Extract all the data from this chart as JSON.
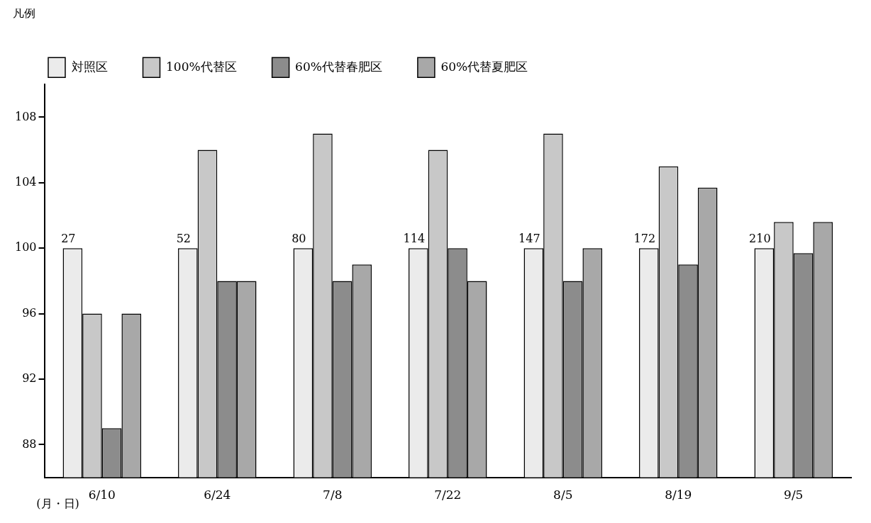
{
  "chart_data": {
    "type": "bar",
    "xlabel": "(月・日)",
    "legend_title": "凡例",
    "categories": [
      "6/10",
      "6/24",
      "7/8",
      "7/22",
      "8/5",
      "8/19",
      "9/5"
    ],
    "series": [
      {
        "name": "対照区",
        "color": "#ebebeb",
        "values": [
          100,
          100,
          100,
          100,
          100,
          100,
          100
        ]
      },
      {
        "name": "100%代替区",
        "color": "#c8c8c8",
        "values": [
          96,
          106,
          107,
          106,
          107,
          105,
          101.6
        ]
      },
      {
        "name": "60%代替春肥区",
        "color": "#8c8c8c",
        "values": [
          89,
          98,
          98,
          100,
          98,
          99,
          99.7
        ]
      },
      {
        "name": "60%代替夏肥区",
        "color": "#a8a8a8",
        "values": [
          96,
          98,
          99,
          98,
          100,
          103.7,
          101.6
        ]
      }
    ],
    "ylim": [
      86,
      110
    ],
    "yticks": [
      88,
      92,
      96,
      100,
      104,
      108
    ],
    "grid": false,
    "legend": "top",
    "annotations": [
      "27",
      "52",
      "80",
      "114",
      "147",
      "172",
      "210"
    ]
  }
}
